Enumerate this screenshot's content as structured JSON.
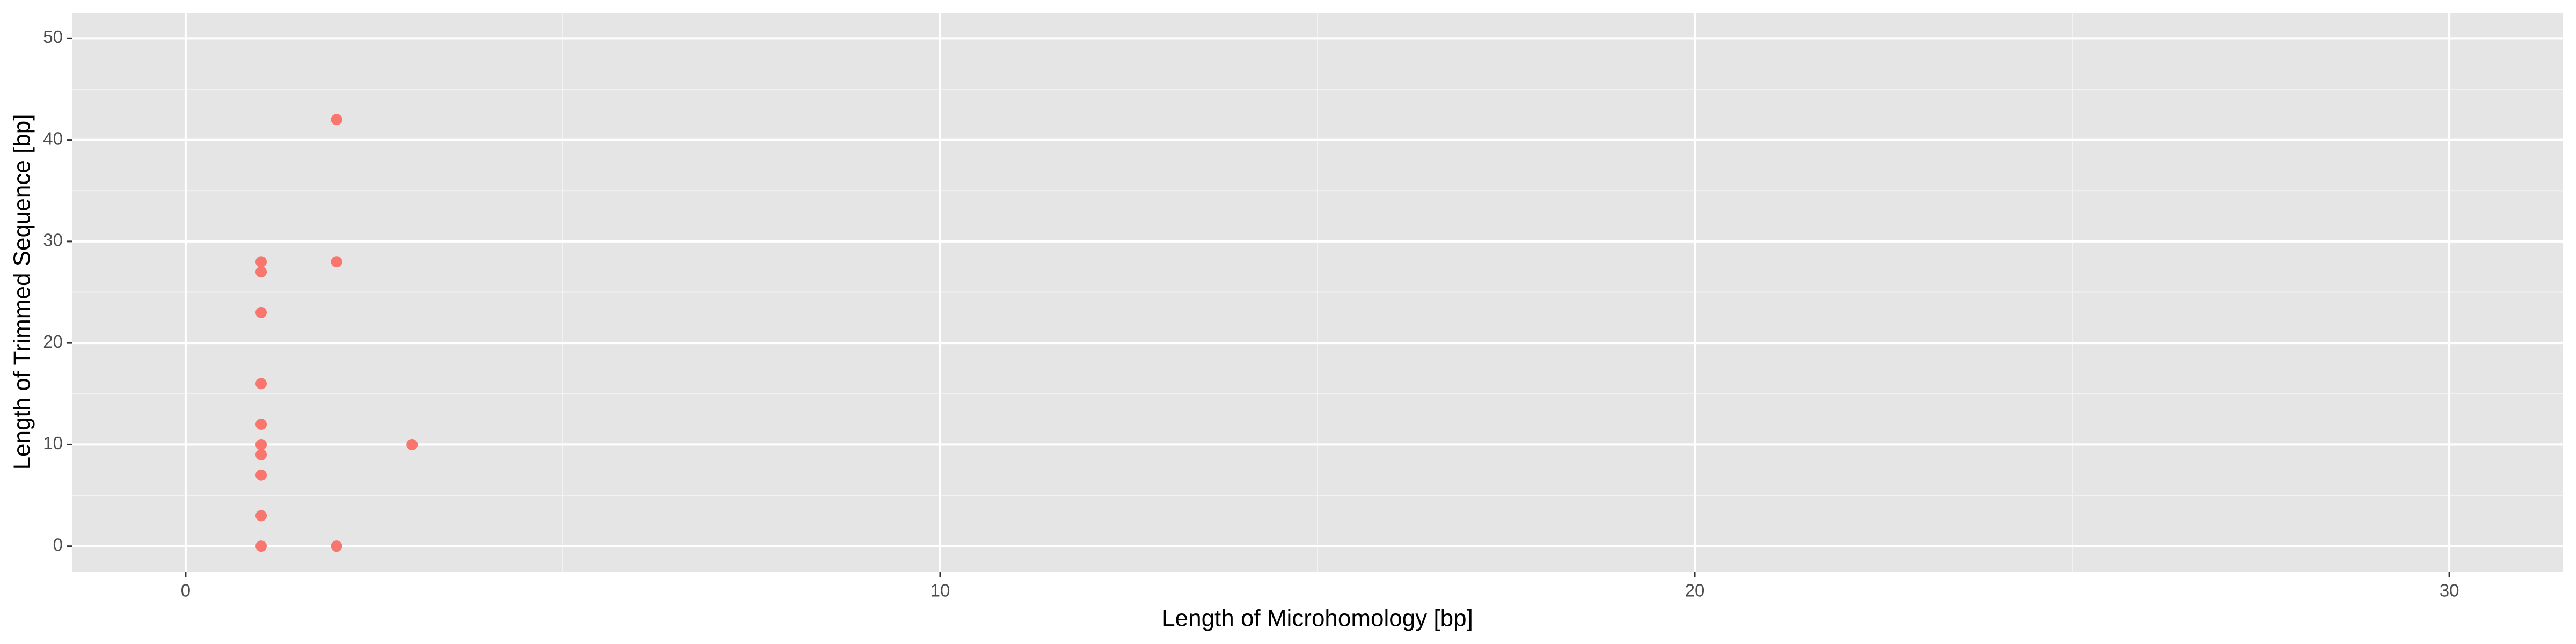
{
  "chart_data": {
    "type": "scatter",
    "x_label": "Length of Microhomology [bp]",
    "y_label": "Length of Trimmed Sequence [bp]",
    "x": [
      1,
      1,
      1,
      1,
      1,
      1,
      1,
      1,
      1,
      1,
      2,
      2,
      2,
      3
    ],
    "values": [
      28,
      27,
      23,
      16,
      12,
      10,
      9,
      7,
      3,
      0,
      42,
      28,
      0,
      10
    ],
    "color": "#F8766D",
    "xlim": [
      -1.5,
      31.5
    ],
    "xticks": [
      0,
      10,
      20,
      30
    ],
    "ylim": [
      -2.5,
      52.5
    ],
    "yticks": [
      0,
      10,
      20,
      30,
      40,
      50
    ],
    "grid": true
  }
}
